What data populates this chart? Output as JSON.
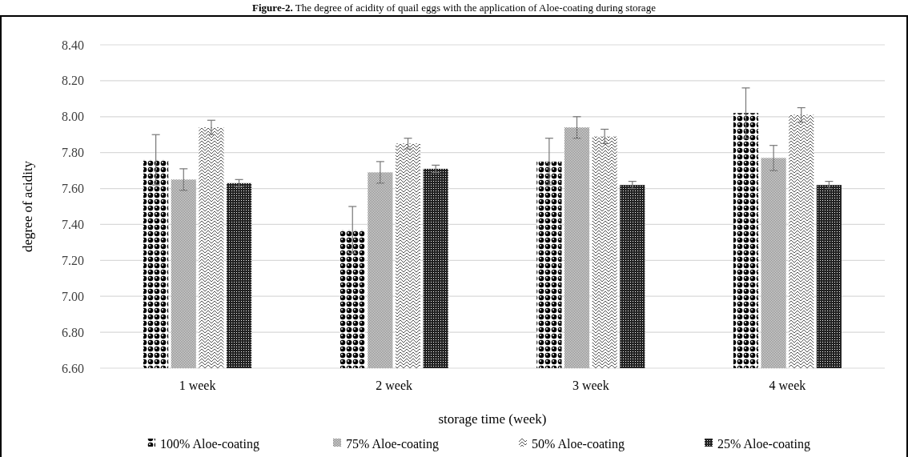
{
  "chart_data": {
    "type": "bar",
    "title": "Figure-2. The degree of acidity of quail eggs with the application of Aloe-coating during storage",
    "xlabel": "storage time (week)",
    "ylabel": "degree of acidity",
    "categories": [
      "1 week",
      "2 week",
      "3 week",
      "4 week"
    ],
    "series": [
      {
        "name": "100% Aloe-coating",
        "color": "#000000",
        "values": [
          7.76,
          7.37,
          7.75,
          8.02
        ],
        "errors": [
          0.14,
          0.13,
          0.13,
          0.14
        ]
      },
      {
        "name": "75% Aloe-coating",
        "color": "#666666",
        "values": [
          7.65,
          7.69,
          7.94,
          7.77
        ],
        "errors": [
          0.06,
          0.06,
          0.06,
          0.07
        ]
      },
      {
        "name": "50% Aloe-coating",
        "color": "#555555",
        "values": [
          7.94,
          7.85,
          7.89,
          8.01
        ],
        "errors": [
          0.04,
          0.03,
          0.04,
          0.04
        ]
      },
      {
        "name": "25% Aloe-coating",
        "color": "#222222",
        "values": [
          7.63,
          7.71,
          7.62,
          7.62
        ],
        "errors": [
          0.02,
          0.02,
          0.02,
          0.02
        ]
      }
    ],
    "ylim": [
      6.6,
      8.4
    ],
    "yticks": [
      {
        "value": 6.6,
        "label": "6.60"
      },
      {
        "value": 6.8,
        "label": "6.80"
      },
      {
        "value": 7.0,
        "label": "7.00"
      },
      {
        "value": 7.2,
        "label": "7.20"
      },
      {
        "value": 7.4,
        "label": "7.40"
      },
      {
        "value": 7.6,
        "label": "7.60"
      },
      {
        "value": 7.8,
        "label": "7.80"
      },
      {
        "value": 8.0,
        "label": "8.00"
      },
      {
        "value": 8.2,
        "label": "8.20"
      },
      {
        "value": 8.4,
        "label": "8.40"
      }
    ],
    "grid": "y",
    "legend": "bottom"
  }
}
